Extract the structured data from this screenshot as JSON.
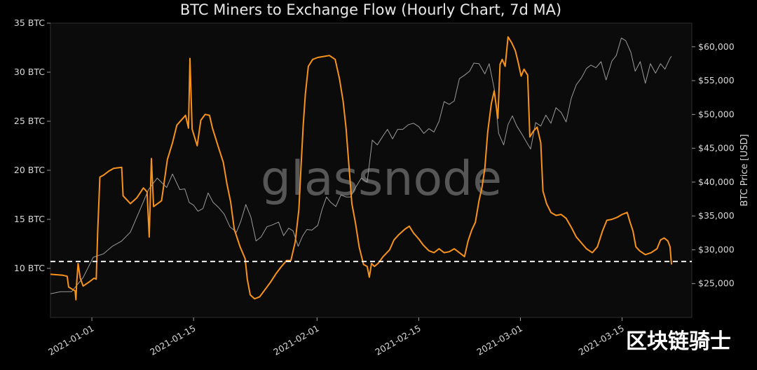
{
  "watermark": "glassnode",
  "corner_text": "区块链骑士",
  "colors": {
    "background": "#0b0b0b",
    "flow": "#f7931a",
    "price": "#9a9a9a",
    "threshold": "#ffffff",
    "text": "#d8d8d8"
  },
  "chart_data": {
    "type": "line",
    "title": "BTC Miners to Exchange Flow (Hourly Chart, 7d MA)",
    "xlabel": "",
    "y_left": {
      "ylim": [
        5,
        35
      ],
      "ticks": [
        "10 BTC",
        "15 BTC",
        "20 BTC",
        "25 BTC",
        "30 BTC",
        "35 BTC"
      ],
      "tick_values": [
        10,
        15,
        20,
        25,
        30,
        35
      ]
    },
    "y_right": {
      "label": "BTC Price [USD]",
      "ylim": [
        20000,
        63500
      ],
      "ticks": [
        "$25,000",
        "$30,000",
        "$35,000",
        "$40,000",
        "$45,000",
        "$50,000",
        "$55,000",
        "$60,000"
      ],
      "tick_values": [
        25000,
        30000,
        35000,
        40000,
        45000,
        50000,
        55000,
        60000
      ]
    },
    "x_range_days": [
      -5.7,
      82.6
    ],
    "x_ticks": [
      {
        "label": "2021-01-01",
        "day": 0
      },
      {
        "label": "2021-01-15",
        "day": 14
      },
      {
        "label": "2021-02-01",
        "day": 31
      },
      {
        "label": "2021-02-15",
        "day": 45
      },
      {
        "label": "2021-03-01",
        "day": 59
      },
      {
        "label": "2021-03-15",
        "day": 73
      }
    ],
    "threshold": 10.7,
    "series": [
      {
        "axis": "left",
        "points": [
          [
            -5.7,
            9.4
          ],
          [
            -4.0,
            9.3
          ],
          [
            -3.4,
            9.2
          ],
          [
            -3.2,
            8.1
          ],
          [
            -2.3,
            7.7
          ],
          [
            -2.2,
            6.8
          ],
          [
            -2.1,
            8.4
          ],
          [
            -1.9,
            10.5
          ],
          [
            -1.6,
            9.0
          ],
          [
            -1.2,
            8.2
          ],
          [
            -0.4,
            8.6
          ],
          [
            0.3,
            9.0
          ],
          [
            0.6,
            8.9
          ],
          [
            0.8,
            13.8
          ],
          [
            1.1,
            19.3
          ],
          [
            1.6,
            19.5
          ],
          [
            2.3,
            19.9
          ],
          [
            3.0,
            20.2
          ],
          [
            4.1,
            20.3
          ],
          [
            4.3,
            17.4
          ],
          [
            5.3,
            16.6
          ],
          [
            6.2,
            17.2
          ],
          [
            7.1,
            18.2
          ],
          [
            7.6,
            17.8
          ],
          [
            7.9,
            13.2
          ],
          [
            8.2,
            21.2
          ],
          [
            8.5,
            16.3
          ],
          [
            9.6,
            16.9
          ],
          [
            10.4,
            21.1
          ],
          [
            11.1,
            22.8
          ],
          [
            11.7,
            24.6
          ],
          [
            12.3,
            25.1
          ],
          [
            12.9,
            25.6
          ],
          [
            13.3,
            24.3
          ],
          [
            13.5,
            31.4
          ],
          [
            13.8,
            24.2
          ],
          [
            14.5,
            22.5
          ],
          [
            15.0,
            25.1
          ],
          [
            15.6,
            25.7
          ],
          [
            16.2,
            25.6
          ],
          [
            16.6,
            24.3
          ],
          [
            17.4,
            22.4
          ],
          [
            18.1,
            20.8
          ],
          [
            18.6,
            18.6
          ],
          [
            19.1,
            16.8
          ],
          [
            19.6,
            14.0
          ],
          [
            20.4,
            12.2
          ],
          [
            21.1,
            11.0
          ],
          [
            21.4,
            8.9
          ],
          [
            21.8,
            7.3
          ],
          [
            22.4,
            6.9
          ],
          [
            23.1,
            7.1
          ],
          [
            23.8,
            7.8
          ],
          [
            24.6,
            8.6
          ],
          [
            25.3,
            9.4
          ],
          [
            26.0,
            10.1
          ],
          [
            26.8,
            10.8
          ],
          [
            27.4,
            10.8
          ],
          [
            28.0,
            12.7
          ],
          [
            28.5,
            16.0
          ],
          [
            28.8,
            20.4
          ],
          [
            29.1,
            24.6
          ],
          [
            29.4,
            27.8
          ],
          [
            29.8,
            30.6
          ],
          [
            30.4,
            31.3
          ],
          [
            31.1,
            31.5
          ],
          [
            31.9,
            31.6
          ],
          [
            32.7,
            31.7
          ],
          [
            33.5,
            31.3
          ],
          [
            34.1,
            29.3
          ],
          [
            34.6,
            27.0
          ],
          [
            35.0,
            24.3
          ],
          [
            35.4,
            20.4
          ],
          [
            35.8,
            16.6
          ],
          [
            36.3,
            14.6
          ],
          [
            36.8,
            12.2
          ],
          [
            37.4,
            10.4
          ],
          [
            37.9,
            10.2
          ],
          [
            38.2,
            9.1
          ],
          [
            38.5,
            10.5
          ],
          [
            38.9,
            10.2
          ],
          [
            39.4,
            10.5
          ],
          [
            40.1,
            11.2
          ],
          [
            41.0,
            11.9
          ],
          [
            41.6,
            12.9
          ],
          [
            42.2,
            13.4
          ],
          [
            43.1,
            14.0
          ],
          [
            43.7,
            14.3
          ],
          [
            44.3,
            13.6
          ],
          [
            45.0,
            13.0
          ],
          [
            45.6,
            12.4
          ],
          [
            46.4,
            11.8
          ],
          [
            47.1,
            11.6
          ],
          [
            47.8,
            12.0
          ],
          [
            48.5,
            11.6
          ],
          [
            49.2,
            11.7
          ],
          [
            49.9,
            12.0
          ],
          [
            50.6,
            11.6
          ],
          [
            51.3,
            11.2
          ],
          [
            51.8,
            12.8
          ],
          [
            52.3,
            13.9
          ],
          [
            52.8,
            14.7
          ],
          [
            53.3,
            16.9
          ],
          [
            53.7,
            18.2
          ],
          [
            54.1,
            20.2
          ],
          [
            54.5,
            23.9
          ],
          [
            55.0,
            26.8
          ],
          [
            55.4,
            28.1
          ],
          [
            55.9,
            25.3
          ],
          [
            56.2,
            30.8
          ],
          [
            56.5,
            31.3
          ],
          [
            56.9,
            30.6
          ],
          [
            57.3,
            33.6
          ],
          [
            57.8,
            33.0
          ],
          [
            58.3,
            32.2
          ],
          [
            58.7,
            31.0
          ],
          [
            59.1,
            29.6
          ],
          [
            59.5,
            30.3
          ],
          [
            60.0,
            29.7
          ],
          [
            60.3,
            23.4
          ],
          [
            60.8,
            24.0
          ],
          [
            61.3,
            24.4
          ],
          [
            61.8,
            22.8
          ],
          [
            62.1,
            17.9
          ],
          [
            62.6,
            16.6
          ],
          [
            63.2,
            15.7
          ],
          [
            63.9,
            15.4
          ],
          [
            64.6,
            15.5
          ],
          [
            65.3,
            15.1
          ],
          [
            66.0,
            14.2
          ],
          [
            66.7,
            13.2
          ],
          [
            67.4,
            12.6
          ],
          [
            68.1,
            12.0
          ],
          [
            68.9,
            11.6
          ],
          [
            69.6,
            12.2
          ],
          [
            70.3,
            13.8
          ],
          [
            70.9,
            14.9
          ],
          [
            71.6,
            15.0
          ],
          [
            72.3,
            15.2
          ],
          [
            73.0,
            15.5
          ],
          [
            73.7,
            15.7
          ],
          [
            74.1,
            14.7
          ],
          [
            74.5,
            13.8
          ],
          [
            74.9,
            12.2
          ],
          [
            75.4,
            11.8
          ],
          [
            76.2,
            11.4
          ],
          [
            77.0,
            11.6
          ],
          [
            77.8,
            12.0
          ],
          [
            78.3,
            12.9
          ],
          [
            78.8,
            13.1
          ],
          [
            79.3,
            12.8
          ],
          [
            79.6,
            12.2
          ],
          [
            79.8,
            10.4
          ]
        ]
      },
      {
        "axis": "right",
        "points": [
          [
            -5.7,
            23500
          ],
          [
            -4.3,
            23800
          ],
          [
            -2.8,
            23800
          ],
          [
            -1.2,
            25900
          ],
          [
            0.2,
            28900
          ],
          [
            1.6,
            29400
          ],
          [
            2.8,
            30500
          ],
          [
            4.1,
            31300
          ],
          [
            5.3,
            32600
          ],
          [
            6.5,
            35600
          ],
          [
            7.8,
            38900
          ],
          [
            9.0,
            40600
          ],
          [
            10.3,
            39200
          ],
          [
            11.1,
            41200
          ],
          [
            12.1,
            38900
          ],
          [
            12.8,
            39000
          ],
          [
            13.4,
            37000
          ],
          [
            14.0,
            36600
          ],
          [
            14.6,
            35700
          ],
          [
            15.3,
            36100
          ],
          [
            16.0,
            38400
          ],
          [
            16.7,
            37000
          ],
          [
            17.4,
            36300
          ],
          [
            18.2,
            35300
          ],
          [
            19.0,
            33400
          ],
          [
            19.9,
            32600
          ],
          [
            20.5,
            34200
          ],
          [
            21.2,
            36700
          ],
          [
            21.9,
            34800
          ],
          [
            22.6,
            31300
          ],
          [
            23.3,
            31900
          ],
          [
            24.1,
            33400
          ],
          [
            24.9,
            33700
          ],
          [
            25.7,
            34100
          ],
          [
            26.4,
            32100
          ],
          [
            27.1,
            33200
          ],
          [
            27.7,
            32800
          ],
          [
            28.4,
            30500
          ],
          [
            29.0,
            32000
          ],
          [
            29.6,
            33000
          ],
          [
            30.3,
            32900
          ],
          [
            31.1,
            33600
          ],
          [
            31.7,
            36000
          ],
          [
            32.3,
            37800
          ],
          [
            32.9,
            37000
          ],
          [
            33.6,
            36400
          ],
          [
            34.3,
            38100
          ],
          [
            35.0,
            37800
          ],
          [
            35.6,
            37800
          ],
          [
            36.3,
            39200
          ],
          [
            37.1,
            40600
          ],
          [
            37.9,
            40000
          ],
          [
            38.6,
            46200
          ],
          [
            39.3,
            45500
          ],
          [
            40.0,
            46700
          ],
          [
            40.7,
            47800
          ],
          [
            41.4,
            46400
          ],
          [
            42.1,
            47800
          ],
          [
            42.8,
            47800
          ],
          [
            43.6,
            48500
          ],
          [
            44.3,
            48700
          ],
          [
            45.0,
            48200
          ],
          [
            45.7,
            47200
          ],
          [
            46.4,
            47900
          ],
          [
            47.1,
            47400
          ],
          [
            47.8,
            49000
          ],
          [
            48.5,
            51900
          ],
          [
            49.2,
            51500
          ],
          [
            49.9,
            52000
          ],
          [
            50.6,
            55300
          ],
          [
            51.3,
            55800
          ],
          [
            52.0,
            56400
          ],
          [
            52.6,
            57600
          ],
          [
            53.3,
            57500
          ],
          [
            54.1,
            56000
          ],
          [
            54.7,
            57500
          ],
          [
            55.4,
            53800
          ],
          [
            56.0,
            47200
          ],
          [
            56.7,
            45500
          ],
          [
            57.3,
            48500
          ],
          [
            57.9,
            49800
          ],
          [
            58.5,
            48300
          ],
          [
            59.2,
            47100
          ],
          [
            59.8,
            46000
          ],
          [
            60.4,
            44900
          ],
          [
            61.1,
            48800
          ],
          [
            61.8,
            48300
          ],
          [
            62.5,
            49900
          ],
          [
            63.2,
            48700
          ],
          [
            63.9,
            51000
          ],
          [
            64.6,
            50300
          ],
          [
            65.3,
            48900
          ],
          [
            66.0,
            52400
          ],
          [
            66.7,
            54400
          ],
          [
            67.4,
            55400
          ],
          [
            68.1,
            56800
          ],
          [
            68.7,
            57300
          ],
          [
            69.4,
            56900
          ],
          [
            70.1,
            57800
          ],
          [
            70.8,
            55100
          ],
          [
            71.6,
            57900
          ],
          [
            72.2,
            58700
          ],
          [
            72.9,
            61300
          ],
          [
            73.5,
            60900
          ],
          [
            74.2,
            59200
          ],
          [
            74.8,
            56400
          ],
          [
            75.5,
            57800
          ],
          [
            76.2,
            54600
          ],
          [
            76.9,
            57500
          ],
          [
            77.6,
            56100
          ],
          [
            78.3,
            57500
          ],
          [
            78.9,
            56700
          ],
          [
            79.6,
            58300
          ],
          [
            79.8,
            58600
          ]
        ]
      }
    ]
  }
}
